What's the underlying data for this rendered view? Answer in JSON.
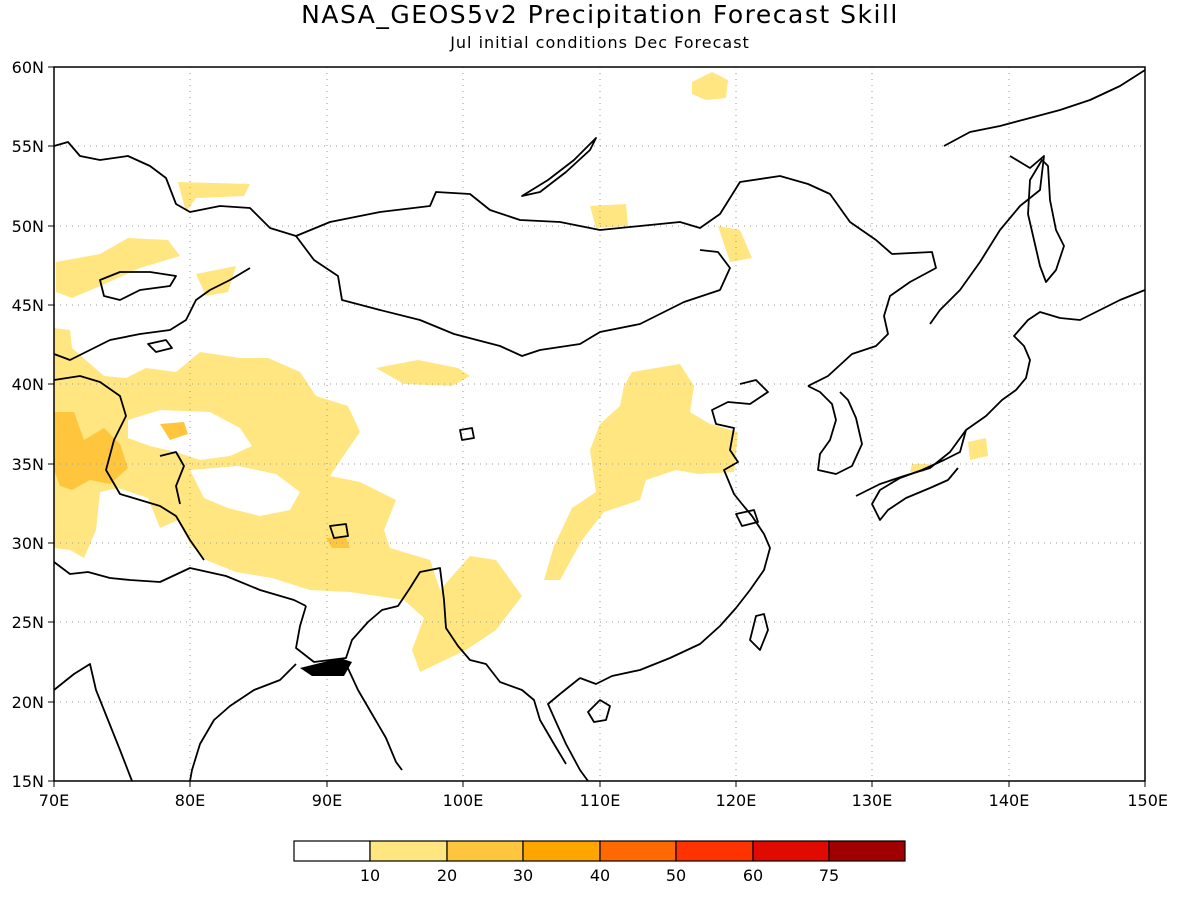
{
  "title": "NASA_GEOS5v2 Precipitation Forecast Skill",
  "subtitle": "Jul initial conditions  Dec Forecast",
  "map": {
    "lon_range": [
      70,
      150
    ],
    "lat_range": [
      15,
      60
    ],
    "lon_ticks": [
      "70E",
      "80E",
      "90E",
      "100E",
      "110E",
      "120E",
      "130E",
      "140E",
      "150E"
    ],
    "lat_ticks": [
      "60N",
      "55N",
      "50N",
      "45N",
      "40N",
      "35N",
      "30N",
      "25N",
      "20N",
      "15N"
    ],
    "grid": "dotted"
  },
  "legend": {
    "colors": [
      "#ffffff",
      "#ffe680",
      "#ffc53d",
      "#ffa500",
      "#ff6a00",
      "#ff3300",
      "#e00a00",
      "#a00000"
    ],
    "labels": [
      "10",
      "20",
      "30",
      "40",
      "50",
      "60",
      "75"
    ]
  }
}
